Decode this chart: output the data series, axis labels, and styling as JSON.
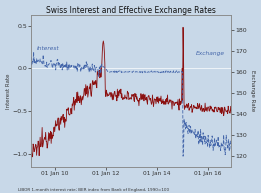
{
  "title": "Swiss Interest and Effective Exchange Rates",
  "footnote": "LIBOR 1-month interest rate; BER index from Bank of England, 1990=100",
  "background_color": "#c8d8e8",
  "plot_bg_color": "#c8d8e8",
  "left_ylabel": "Interest Rate",
  "right_ylabel": "Exchange Rate",
  "left_yticks": [
    -1,
    -0.5,
    0,
    0.5
  ],
  "right_yticks": [
    120,
    130,
    140,
    150,
    160,
    170,
    180
  ],
  "xtick_labels": [
    "01 Jan 10",
    "01 Jan 12",
    "01 Jan 14",
    "01 Jan 16"
  ],
  "interest_color": "#8B1010",
  "exchange_color": "#4466aa",
  "left_ylim": [
    -1.15,
    0.62
  ],
  "right_ylim": [
    115,
    187
  ],
  "interest_label": "Interest",
  "exchange_label": "Exchange",
  "year_start": 2009.08,
  "year_end": 2016.92,
  "xtick_positions": [
    2010.0,
    2012.0,
    2014.0,
    2016.0
  ],
  "n_points": 400,
  "snb_peg_removal_year": 2015.04,
  "spike_jan12_year": 2011.92
}
